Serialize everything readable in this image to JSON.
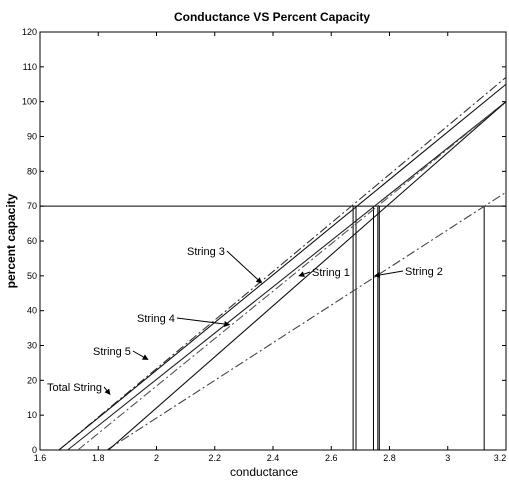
{
  "chart_data": {
    "type": "line",
    "title": "Conductance VS Percent Capacity",
    "xlabel": "conductance",
    "ylabel": "percent capacity",
    "xlim": [
      1.6,
      3.2
    ],
    "ylim": [
      0,
      120
    ],
    "x_ticks": [
      1.6,
      1.8,
      2,
      2.2,
      2.4,
      2.6,
      2.8,
      3,
      3.2
    ],
    "x_tick_labels": [
      "1.6",
      "1.8",
      "2",
      "2.2",
      "2.4",
      "2.6",
      "2.8",
      "3",
      "3.2"
    ],
    "y_ticks": [
      0,
      10,
      20,
      30,
      40,
      50,
      60,
      70,
      80,
      90,
      100,
      110,
      120
    ],
    "y_tick_labels": [
      "0",
      "10",
      "20",
      "30",
      "40",
      "50",
      "60",
      "70",
      "80",
      "90",
      "100",
      "110",
      "120"
    ],
    "grid": false,
    "threshold_y": 70,
    "series": [
      {
        "name": "String 1",
        "x": [
          1.695,
          3.2
        ],
        "y": [
          0,
          100
        ],
        "style": "solid",
        "color": "#222222",
        "drop_x": 2.745
      },
      {
        "name": "String 2",
        "x": [
          1.83,
          3.2
        ],
        "y": [
          0,
          74
        ],
        "style": "dashdot",
        "color": "#444444",
        "drop_x": 3.125
      },
      {
        "name": "String 3",
        "x": [
          1.665,
          3.2
        ],
        "y": [
          0,
          107
        ],
        "style": "dashdot",
        "color": "#333333",
        "drop_x": 2.675
      },
      {
        "name": "String 4",
        "x": [
          1.665,
          3.2
        ],
        "y": [
          0,
          105
        ],
        "style": "solid",
        "color": "#111111",
        "drop_x": 2.685
      },
      {
        "name": "String 5",
        "x": [
          1.73,
          3.2
        ],
        "y": [
          0,
          100
        ],
        "style": "dashdot",
        "color": "#555555",
        "drop_x": 2.76
      },
      {
        "name": "Total String",
        "x": [
          1.835,
          3.2
        ],
        "y": [
          0,
          100
        ],
        "style": "solid",
        "color": "#111111",
        "drop_x": 2.765
      }
    ],
    "annotations": [
      {
        "text": "String 1",
        "target_series": "String 1",
        "target_x": 2.49,
        "target_y": 50
      },
      {
        "text": "String 2",
        "target_series": "String 2",
        "target_x": 2.75,
        "target_y": 50
      },
      {
        "text": "String 3",
        "target_series": "String 3",
        "target_x": 2.36,
        "target_y": 48
      },
      {
        "text": "String 4",
        "target_series": "String 4",
        "target_x": 2.25,
        "target_y": 36
      },
      {
        "text": "String 5",
        "target_series": "String 5",
        "target_x": 1.97,
        "target_y": 26
      },
      {
        "text": "Total String",
        "target_series": "Total String",
        "target_x": 1.84,
        "target_y": 16
      }
    ]
  }
}
